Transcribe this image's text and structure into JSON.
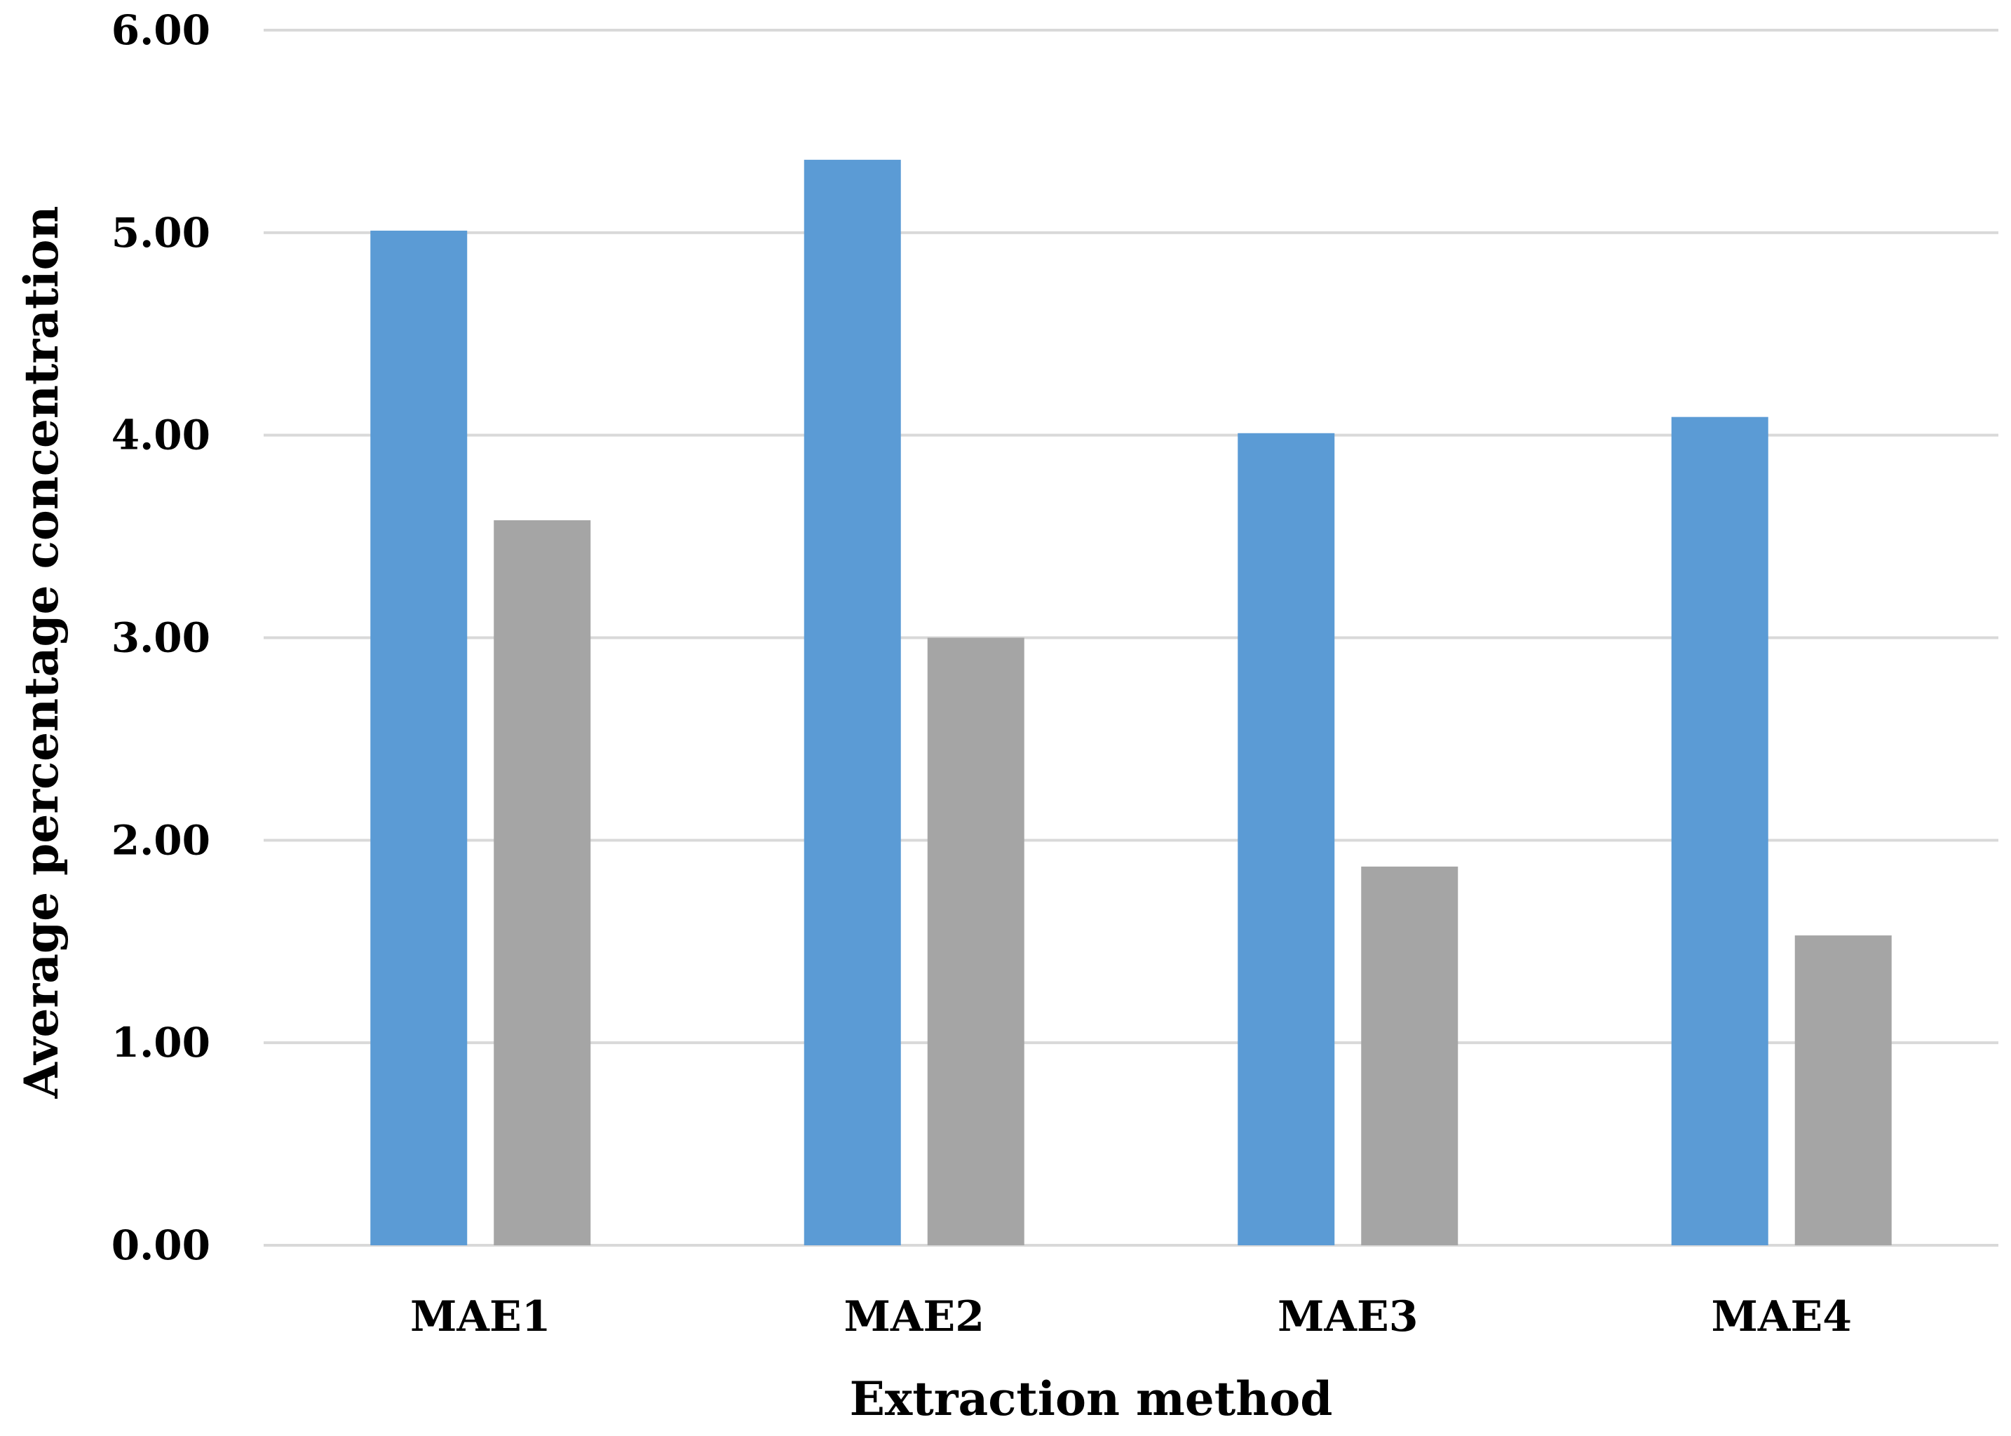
{
  "chart_data": {
    "type": "bar",
    "title": "",
    "xlabel": "Extraction method",
    "ylabel": "Average percentage concentration",
    "categories": [
      "MAE1",
      "MAE2",
      "MAE3",
      "MAE4"
    ],
    "series": [
      {
        "values": [
          5.01,
          5.36,
          4.01,
          4.09
        ],
        "color": "#5B9BD5"
      },
      {
        "values": [
          3.58,
          3.0,
          1.87,
          1.53
        ],
        "color": "#A5A5A5"
      }
    ],
    "ylim": [
      0,
      6
    ],
    "yticks": [
      "0.00",
      "1.00",
      "2.00",
      "3.00",
      "4.00",
      "5.00",
      "6.00"
    ],
    "ytick_values": [
      0,
      1,
      2,
      3,
      4,
      5,
      6
    ],
    "grid": true,
    "legend": "none",
    "gridline_color": "#D9D9D9"
  }
}
